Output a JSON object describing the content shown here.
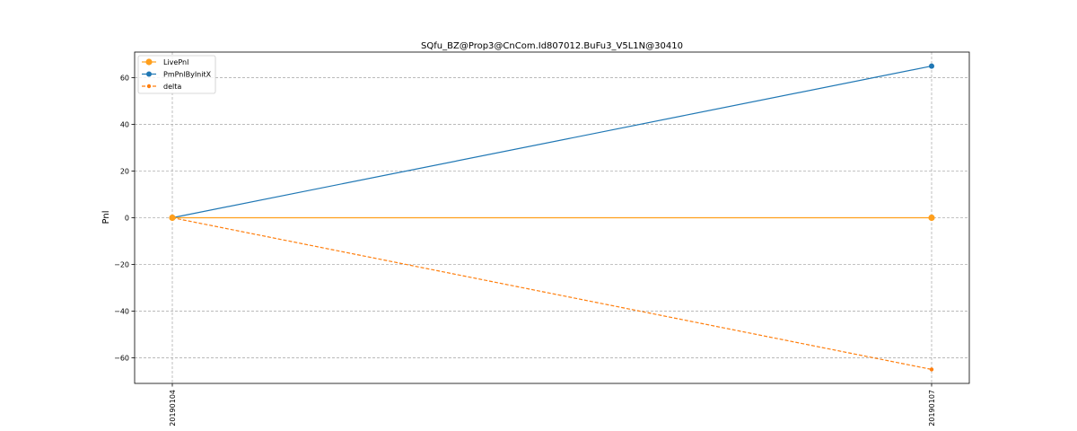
{
  "chart_data": {
    "type": "line",
    "title": "SQfu_BZ@Prop3@CnCom.Id807012.BuFu3_V5L1N@30410",
    "xlabel": "",
    "ylabel": "Pnl",
    "categories": [
      "20190104",
      "20190107"
    ],
    "ylim": [
      -71,
      71
    ],
    "yticks": [
      60,
      40,
      20,
      0,
      -20,
      -40,
      -60
    ],
    "ytick_labels": [
      "60",
      "40",
      "20",
      "0",
      "−20",
      "−40",
      "−60"
    ],
    "grid": true,
    "legend_position": "top-left",
    "series": [
      {
        "name": "LivePnl",
        "values": [
          0,
          0
        ],
        "color": "#ff9f1c",
        "style": "solid",
        "marker": "circle-large"
      },
      {
        "name": "PmPnlByInitX",
        "values": [
          0,
          65
        ],
        "color": "#1f77b4",
        "style": "solid",
        "marker": "circle"
      },
      {
        "name": "delta",
        "values": [
          0,
          -65
        ],
        "color": "#ff7f0e",
        "style": "dashed",
        "marker": "circle-small"
      }
    ]
  }
}
